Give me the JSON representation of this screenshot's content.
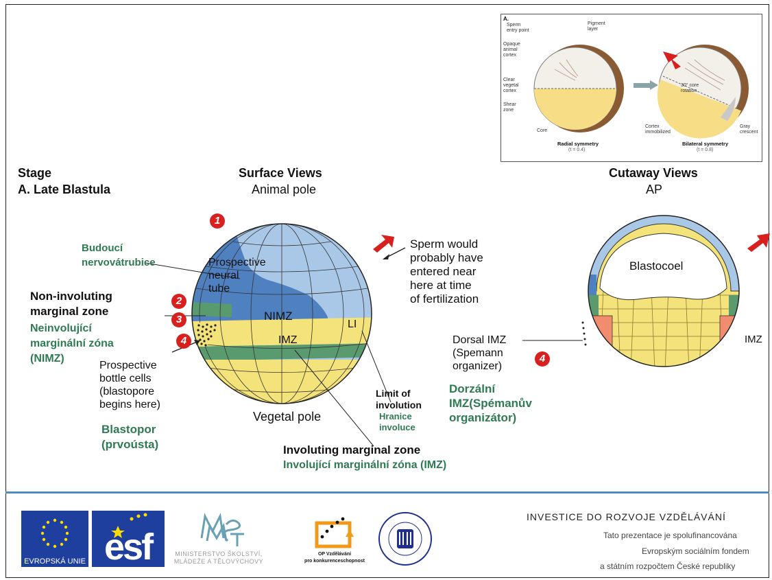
{
  "inset": {
    "letter": "A.",
    "sperm_entry": "Sperm\nentry point",
    "pigment": "Pigment\nlayer",
    "opaque": "Opaque\nanimal\ncortex",
    "clear": "Clear\nvegetal\ncortex",
    "shear": "Shear\nzone",
    "core": "Core",
    "rotation": "30° core\nrotation",
    "immobilized": "Cortex\nimmobilized",
    "gray": "Gray\ncrescent",
    "radial": "Radial symmetry",
    "radial_t": "(t = 0.4)",
    "bilateral": "Bilateral symmetry",
    "bilateral_t": "(t = 0.8)"
  },
  "stage": "Stage",
  "late_blastula": "A. Late Blastula",
  "surface_views": "Surface Views",
  "animal_pole": "Animal pole",
  "cutaway_views": "Cutaway Views",
  "ap": "AP",
  "budouci": "Budoucí\nnervovátrubice",
  "prospective_neural": "Prospective\nneural\ntube",
  "sperm_text": "Sperm would\nprobably have\nentered near\nhere at time\nof fertilization",
  "non_involuting": "Non-involuting\nmarginal zone",
  "neinvolujici": "Neinvolující\nmarginální zóna\n(NIMZ)",
  "nimz": "NIMZ",
  "li": "LI",
  "imz": "IMZ",
  "bottle_cells": "Prospective\nbottle cells\n(blastopore\nbegins here)",
  "blastopor": "Blastopor\n(prvoústa)",
  "vegetal_pole": "Vegetal pole",
  "limit": "Limit of\ninvolution",
  "hranice": "Hranice\ninvoluce",
  "involuting": "Involuting marginal zone",
  "involujici": "Involující marginální zóna (IMZ)",
  "blastocoel": "Blastocoel",
  "dorsal_imz": "Dorsal IMZ\n(Spemann\norganizer)",
  "dorzalni": "Dorzální\nIMZ(Spémanův\norganizátor)",
  "imz_right": "IMZ",
  "numbers": [
    "1",
    "2",
    "3",
    "4",
    "4"
  ],
  "footer": {
    "investice": "INVESTICE DO ROZVOJE VZDĚLÁVÁNÍ",
    "line1": "Tato prezentace je spolufinancována",
    "line2": "Evropským sociálním fondem",
    "line3": "a státním rozpočtem České republiky",
    "eu": "EVROPSKÁ UNIE",
    "esf": "esf",
    "msmt_line1": "MINISTERSTVO ŠKOLSTVÍ,",
    "msmt_line2": "MLÁDEŽE A TĚLOVÝCHOVY",
    "op_line1": "OP Vzdělávání",
    "op_line2": "pro konkurenceschopnost",
    "muni": "UNIVERSITAS MASARYKIANA BRUNENSIS"
  },
  "colors": {
    "light_blue": "#a9c7e6",
    "dark_blue": "#4f80c0",
    "green_band": "#5a9a6f",
    "yellow": "#f4e27a",
    "salmon": "#f28c6e",
    "brown": "#8a5a33",
    "red": "#d8201e",
    "green_text": "#2e7a52",
    "rule": "#4e8cc4"
  }
}
